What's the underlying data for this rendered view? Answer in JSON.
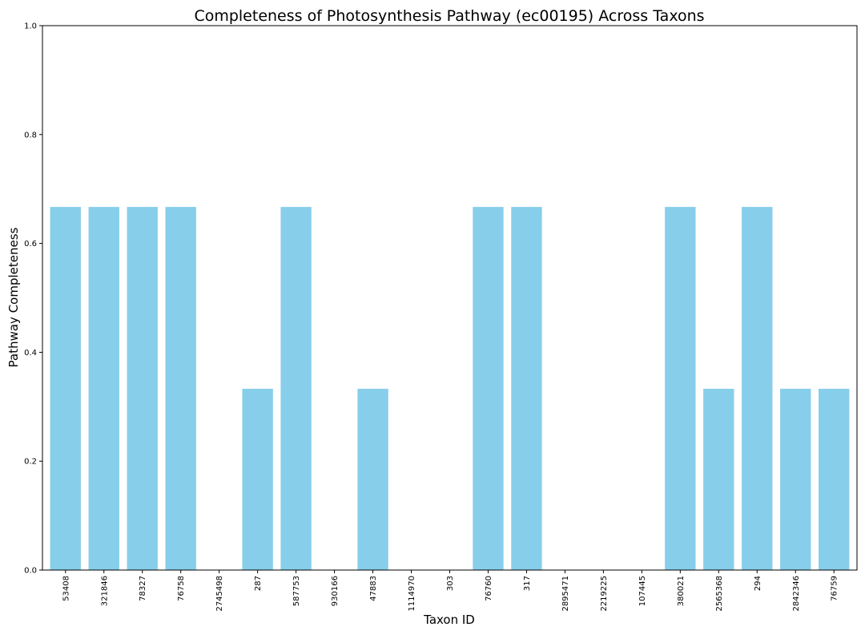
{
  "chart_data": {
    "type": "bar",
    "title": "Completeness of Photosynthesis Pathway (ec00195) Across Taxons",
    "xlabel": "Taxon ID",
    "ylabel": "Pathway Completeness",
    "ylim": [
      0,
      1
    ],
    "yticks": [
      "0.0",
      "0.2",
      "0.4",
      "0.6",
      "0.8",
      "1.0"
    ],
    "grid": false,
    "bar_color": "#87CEEB",
    "categories": [
      "53408",
      "321846",
      "78327",
      "76758",
      "2745498",
      "287",
      "587753",
      "930166",
      "47883",
      "1114970",
      "303",
      "76760",
      "317",
      "2895471",
      "2219225",
      "107445",
      "380021",
      "2565368",
      "294",
      "2842346",
      "76759"
    ],
    "values": [
      0.667,
      0.667,
      0.667,
      0.667,
      0,
      0.333,
      0.667,
      0,
      0.333,
      0,
      0,
      0.667,
      0.667,
      0,
      0,
      0,
      0.667,
      0.333,
      0.667,
      0.333,
      0.333
    ]
  }
}
